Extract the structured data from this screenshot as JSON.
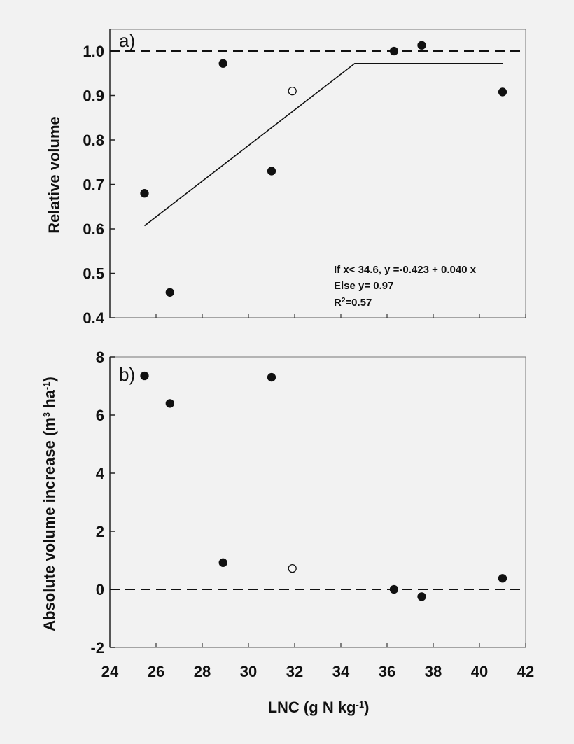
{
  "chart_data": [
    {
      "type": "scatter",
      "panel_label": "a)",
      "xlabel": "",
      "ylabel": "Relative volume",
      "xlim": [
        24,
        42
      ],
      "ylim": [
        0.4,
        1.05
      ],
      "yticks": [
        "0.4",
        "0.5",
        "0.6",
        "0.7",
        "0.8",
        "0.9",
        "1.0"
      ],
      "reference_line_y": 1.0,
      "series": [
        {
          "marker": "filled-circle",
          "x": [
            25.5,
            26.6,
            28.9,
            31.0,
            36.3,
            37.5,
            41.0
          ],
          "y": [
            0.68,
            0.457,
            0.972,
            0.73,
            1.0,
            1.013,
            0.908
          ]
        },
        {
          "marker": "open-circle",
          "x": [
            31.9
          ],
          "y": [
            0.91
          ]
        }
      ],
      "fit_line": {
        "x": [
          25.5,
          34.6,
          41.0
        ],
        "y": [
          0.607,
          0.972,
          0.972
        ]
      },
      "annotation": {
        "line1": "If x< 34.6, y =-0.423 + 0.040 x",
        "line2": "Else y= 0.97",
        "line3_prefix": "R",
        "line3_sup": "2",
        "line3_suffix": "=0.57"
      }
    },
    {
      "type": "scatter",
      "panel_label": "b)",
      "xlabel_prefix": "LNC (g N kg",
      "xlabel_sup": "-1",
      "xlabel_suffix": ")",
      "ylabel_prefix": "Absolute volume increase (m",
      "ylabel_sup1": "3",
      "ylabel_mid": " ha",
      "ylabel_sup2": "-1",
      "ylabel_suffix": ")",
      "xlim": [
        24,
        42
      ],
      "ylim": [
        -2,
        8
      ],
      "xticks": [
        "24",
        "26",
        "28",
        "30",
        "32",
        "34",
        "36",
        "38",
        "40",
        "42"
      ],
      "yticks": [
        "-2",
        "0",
        "2",
        "4",
        "6",
        "8"
      ],
      "reference_line_y": 0,
      "series": [
        {
          "marker": "filled-circle",
          "x": [
            25.5,
            26.6,
            28.9,
            31.0,
            36.3,
            37.5,
            41.0
          ],
          "y": [
            7.35,
            6.4,
            0.92,
            7.3,
            0.0,
            -0.25,
            0.38
          ]
        },
        {
          "marker": "open-circle",
          "x": [
            31.9
          ],
          "y": [
            0.72
          ]
        }
      ]
    }
  ]
}
